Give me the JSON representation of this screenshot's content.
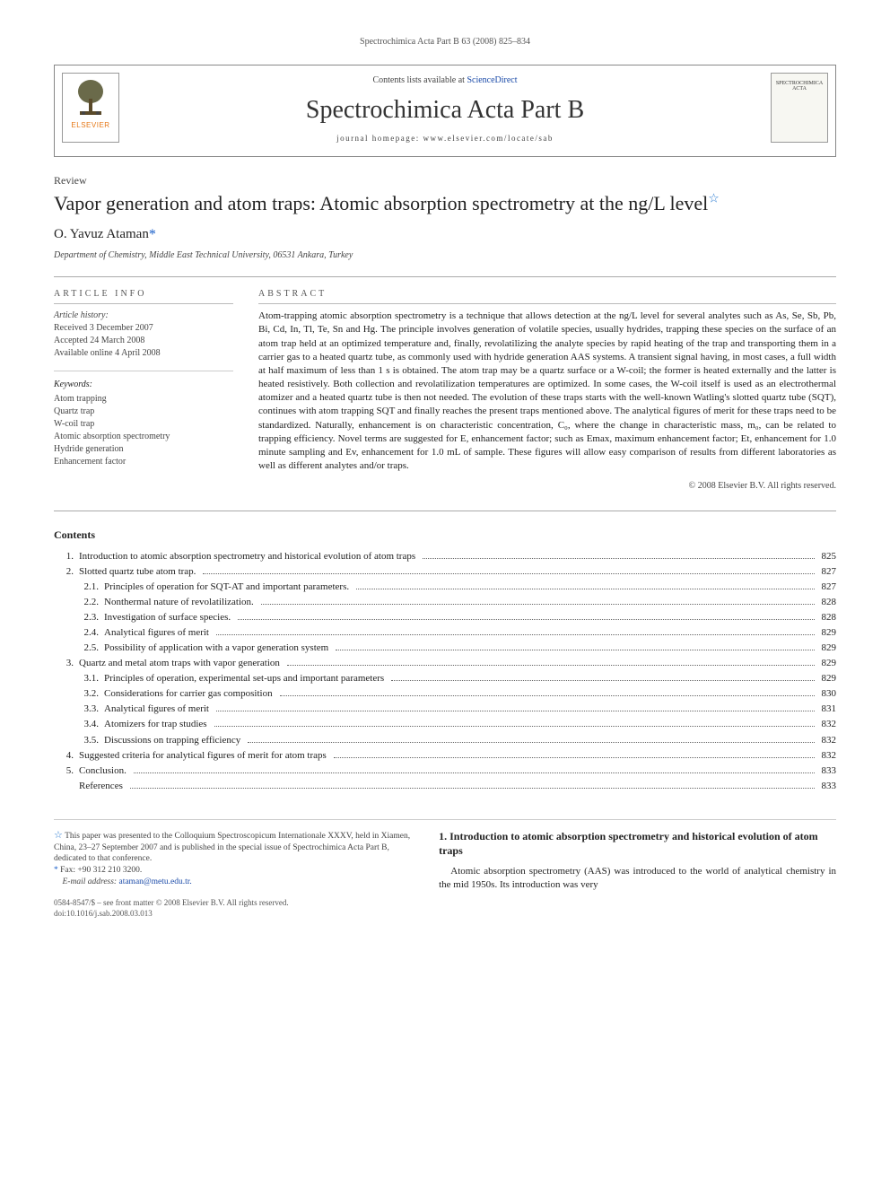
{
  "running_head": "Spectrochimica Acta Part B 63 (2008) 825–834",
  "masthead": {
    "contents_line_prefix": "Contents lists available at ",
    "contents_link_text": "ScienceDirect",
    "journal_name": "Spectrochimica Acta Part B",
    "homepage_line": "journal homepage: www.elsevier.com/locate/sab",
    "publisher_label": "ELSEVIER",
    "cover_caption": "SPECTROCHIMICA ACTA"
  },
  "article": {
    "type": "Review",
    "title": "Vapor generation and atom traps: Atomic absorption spectrometry at the ng/L level",
    "title_has_star": true,
    "author": "O. Yavuz Ataman",
    "author_mark": "*",
    "affiliation": "Department of Chemistry, Middle East Technical University, 06531 Ankara, Turkey"
  },
  "info": {
    "section_head": "ARTICLE INFO",
    "history_label": "Article history:",
    "received": "Received 3 December 2007",
    "accepted": "Accepted 24 March 2008",
    "online": "Available online 4 April 2008",
    "keywords_label": "Keywords:",
    "keywords": [
      "Atom trapping",
      "Quartz trap",
      "W-coil trap",
      "Atomic absorption spectrometry",
      "Hydride generation",
      "Enhancement factor"
    ]
  },
  "abstract": {
    "section_head": "ABSTRACT",
    "text": "Atom-trapping atomic absorption spectrometry is a technique that allows detection at the ng/L level for several analytes such as As, Se, Sb, Pb, Bi, Cd, In, Tl, Te, Sn and Hg. The principle involves generation of volatile species, usually hydrides, trapping these species on the surface of an atom trap held at an optimized temperature and, finally, revolatilizing the analyte species by rapid heating of the trap and transporting them in a carrier gas to a heated quartz tube, as commonly used with hydride generation AAS systems. A transient signal having, in most cases, a full width at half maximum of less than 1 s is obtained. The atom trap may be a quartz surface or a W-coil; the former is heated externally and the latter is heated resistively. Both collection and revolatilization temperatures are optimized. In some cases, the W-coil itself is used as an electrothermal atomizer and a heated quartz tube is then not needed. The evolution of these traps starts with the well-known Watling's slotted quartz tube (SQT), continues with atom trapping SQT and finally reaches the present traps mentioned above. The analytical figures of merit for these traps need to be standardized. Naturally, enhancement is on characteristic concentration, C₀, where the change in characteristic mass, m₀, can be related to trapping efficiency. Novel terms are suggested for E, enhancement factor; such as Emax, maximum enhancement factor; Et, enhancement for 1.0 minute sampling and Ev, enhancement for 1.0 mL of sample. These figures will allow easy comparison of results from different laboratories as well as different analytes and/or traps.",
    "copyright": "© 2008 Elsevier B.V. All rights reserved."
  },
  "contents_label": "Contents",
  "toc": [
    {
      "num": "1.",
      "label": "Introduction to atomic absorption spectrometry and historical evolution of atom traps",
      "page": "825"
    },
    {
      "num": "2.",
      "label": "Slotted quartz tube atom trap.",
      "page": "827"
    },
    {
      "num": "2.1.",
      "label": "Principles of operation for SQT-AT and important parameters.",
      "page": "827",
      "sub": true
    },
    {
      "num": "2.2.",
      "label": "Nonthermal nature of revolatilization.",
      "page": "828",
      "sub": true
    },
    {
      "num": "2.3.",
      "label": "Investigation of surface species.",
      "page": "828",
      "sub": true
    },
    {
      "num": "2.4.",
      "label": "Analytical figures of merit",
      "page": "829",
      "sub": true
    },
    {
      "num": "2.5.",
      "label": "Possibility of application with a vapor generation system",
      "page": "829",
      "sub": true
    },
    {
      "num": "3.",
      "label": "Quartz and metal atom traps with vapor generation",
      "page": "829"
    },
    {
      "num": "3.1.",
      "label": "Principles of operation, experimental set-ups and important parameters",
      "page": "829",
      "sub": true
    },
    {
      "num": "3.2.",
      "label": "Considerations for carrier gas composition",
      "page": "830",
      "sub": true
    },
    {
      "num": "3.3.",
      "label": "Analytical figures of merit",
      "page": "831",
      "sub": true
    },
    {
      "num": "3.4.",
      "label": "Atomizers for trap studies",
      "page": "832",
      "sub": true
    },
    {
      "num": "3.5.",
      "label": "Discussions on trapping efficiency",
      "page": "832",
      "sub": true
    },
    {
      "num": "4.",
      "label": "Suggested criteria for analytical figures of merit for atom traps",
      "page": "832"
    },
    {
      "num": "5.",
      "label": "Conclusion.",
      "page": "833"
    },
    {
      "num": "",
      "label": "References",
      "page": "833"
    }
  ],
  "footnotes": {
    "star_note": "This paper was presented to the Colloquium Spectroscopicum Internationale XXXV, held in Xiamen, China, 23–27 September 2007 and is published in the special issue of Spectrochimica Acta Part B, dedicated to that conference.",
    "corr_note": "Fax: +90 312 210 3200.",
    "email_label": "E-mail address:",
    "email": "ataman@metu.edu.tr."
  },
  "intro": {
    "heading": "1. Introduction to atomic absorption spectrometry and historical evolution of atom traps",
    "para": "Atomic absorption spectrometry (AAS) was introduced to the world of analytical chemistry in the mid 1950s. Its introduction was very"
  },
  "footer": {
    "issn_line": "0584-8547/$ – see front matter © 2008 Elsevier B.V. All rights reserved.",
    "doi_line": "doi:10.1016/j.sab.2008.03.013"
  },
  "colors": {
    "link": "#1a4aa8",
    "star": "#2a7bd1",
    "publisher": "#e67817",
    "text": "#222222",
    "border": "#888888"
  }
}
